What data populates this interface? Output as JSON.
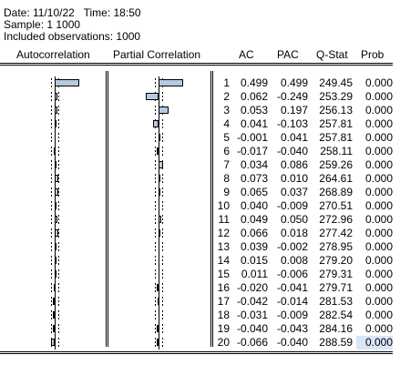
{
  "header": {
    "date_line": "Date: 11/10/22   Time: 18:50",
    "sample_line": "Sample: 1 1000",
    "obs_line": "Included observations: 1000"
  },
  "columns": {
    "autocorrelation": "Autocorrelation",
    "partial_correlation": "Partial Correlation",
    "ac": "AC",
    "pac": "PAC",
    "qstat": "Q-Stat",
    "prob": "Prob"
  },
  "rows": [
    {
      "lag": "1",
      "ac": "0.499",
      "pac": "0.499",
      "q": "249.45",
      "prob": "0.000"
    },
    {
      "lag": "2",
      "ac": "0.062",
      "pac": "-0.249",
      "q": "253.29",
      "prob": "0.000"
    },
    {
      "lag": "3",
      "ac": "0.053",
      "pac": "0.197",
      "q": "256.13",
      "prob": "0.000"
    },
    {
      "lag": "4",
      "ac": "0.041",
      "pac": "-0.103",
      "q": "257.81",
      "prob": "0.000"
    },
    {
      "lag": "5",
      "ac": "-0.001",
      "pac": "0.041",
      "q": "257.81",
      "prob": "0.000"
    },
    {
      "lag": "6",
      "ac": "-0.017",
      "pac": "-0.040",
      "q": "258.11",
      "prob": "0.000"
    },
    {
      "lag": "7",
      "ac": "0.034",
      "pac": "0.086",
      "q": "259.26",
      "prob": "0.000"
    },
    {
      "lag": "8",
      "ac": "0.073",
      "pac": "0.010",
      "q": "264.61",
      "prob": "0.000"
    },
    {
      "lag": "9",
      "ac": "0.065",
      "pac": "0.037",
      "q": "268.89",
      "prob": "0.000"
    },
    {
      "lag": "10",
      "ac": "0.040",
      "pac": "-0.009",
      "q": "270.51",
      "prob": "0.000"
    },
    {
      "lag": "11",
      "ac": "0.049",
      "pac": "0.050",
      "q": "272.96",
      "prob": "0.000"
    },
    {
      "lag": "12",
      "ac": "0.066",
      "pac": "0.018",
      "q": "277.42",
      "prob": "0.000"
    },
    {
      "lag": "13",
      "ac": "0.039",
      "pac": "-0.002",
      "q": "278.95",
      "prob": "0.000"
    },
    {
      "lag": "14",
      "ac": "0.015",
      "pac": "0.008",
      "q": "279.20",
      "prob": "0.000"
    },
    {
      "lag": "15",
      "ac": "0.011",
      "pac": "-0.006",
      "q": "279.31",
      "prob": "0.000"
    },
    {
      "lag": "16",
      "ac": "-0.020",
      "pac": "-0.041",
      "q": "279.71",
      "prob": "0.000"
    },
    {
      "lag": "17",
      "ac": "-0.042",
      "pac": "-0.014",
      "q": "281.53",
      "prob": "0.000"
    },
    {
      "lag": "18",
      "ac": "-0.031",
      "pac": "-0.009",
      "q": "282.54",
      "prob": "0.000"
    },
    {
      "lag": "19",
      "ac": "-0.040",
      "pac": "-0.043",
      "q": "284.16",
      "prob": "0.000"
    },
    {
      "lag": "20",
      "ac": "-0.066",
      "pac": "-0.040",
      "q": "288.59",
      "prob": "0.000"
    }
  ],
  "selected_row_index": 19,
  "colors": {
    "bar_fill": "#b8c8e0",
    "selection": "#d8e6f8"
  }
}
